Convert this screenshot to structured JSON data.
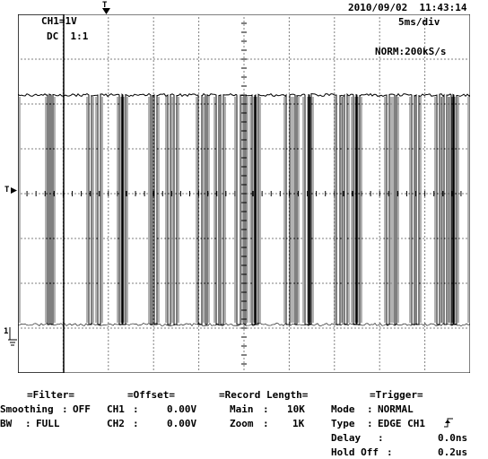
{
  "header": {
    "timestamp": "2010/09/02  11:43:14",
    "channel": "CH1=1V",
    "coupling": "DC  1:1",
    "timebase": "5ms/div",
    "acq_mode": "NORM:200kS/s"
  },
  "markers": {
    "trigger_pos": "T",
    "trigger_level": "T",
    "ch1_ground": "1"
  },
  "waveform": {
    "high_level": 1,
    "low_level": 0,
    "segments": [
      [
        -1,
        33
      ],
      [
        35,
        37
      ],
      [
        39,
        79
      ],
      [
        82,
        89
      ],
      [
        92,
        113
      ],
      [
        116,
        117
      ],
      [
        120,
        148
      ],
      [
        150,
        152
      ],
      [
        155,
        167
      ],
      [
        170,
        174
      ],
      [
        177,
        201
      ],
      [
        205,
        209
      ],
      [
        211,
        221
      ],
      [
        224,
        226
      ],
      [
        229,
        244
      ],
      [
        248,
        252
      ],
      [
        254,
        261
      ],
      [
        264,
        265
      ],
      [
        268,
        299
      ],
      [
        303,
        309
      ],
      [
        311,
        320
      ],
      [
        324,
        325
      ],
      [
        327,
        355
      ],
      [
        359,
        364
      ],
      [
        367,
        374
      ],
      [
        377,
        378
      ],
      [
        381,
        411
      ],
      [
        414,
        420
      ],
      [
        422,
        439
      ],
      [
        442,
        444
      ],
      [
        447,
        467
      ],
      [
        470,
        475
      ],
      [
        478,
        483
      ],
      [
        485,
        486
      ],
      [
        489,
        504
      ]
    ]
  },
  "filter": {
    "title": "=Filter=",
    "smoothing_label": "Smoothing",
    "smoothing_value": "OFF",
    "bw_label": "BW",
    "bw_value": "FULL"
  },
  "offset": {
    "title": "=Offset=",
    "ch1_label": "CH1",
    "ch1_value": "0.00V",
    "ch2_label": "CH2",
    "ch2_value": "0.00V"
  },
  "record_length": {
    "title": "=Record Length=",
    "main_label": "Main",
    "main_value": "10K",
    "zoom_label": "Zoom",
    "zoom_value": "1K"
  },
  "trigger": {
    "title": "=Trigger=",
    "mode_label": "Mode",
    "mode_value": "NORMAL",
    "type_label": "Type",
    "type_value": "EDGE CH1",
    "delay_label": "Delay",
    "delay_value": "0.0ns",
    "holdoff_label": "Hold Off",
    "holdoff_value": "0.2us"
  },
  "colors": {
    "trace": "#000000",
    "grid": "#000000",
    "background": "#ffffff"
  }
}
